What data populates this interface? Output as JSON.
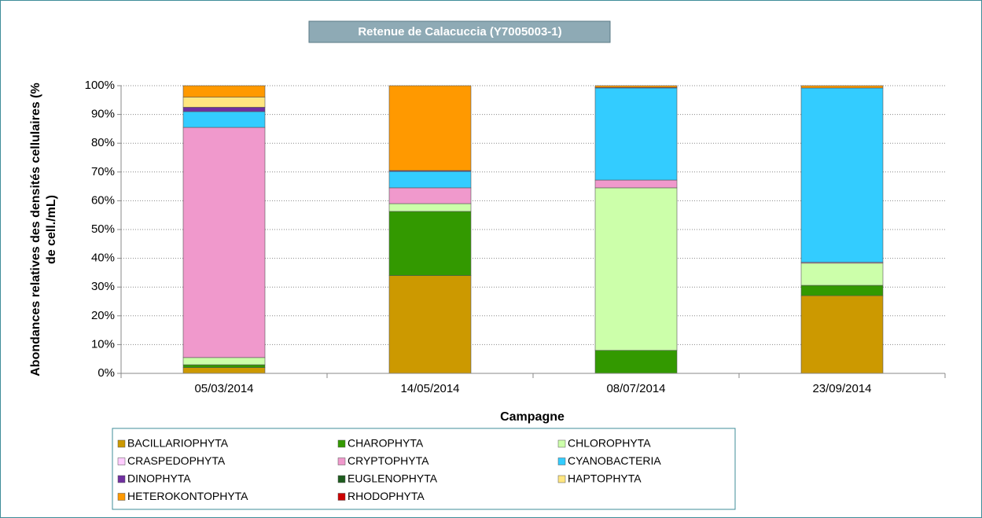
{
  "chart_data": {
    "type": "stacked_bar",
    "title": "Retenue de Calacuccia (Y7005003-1)",
    "xlabel": "Campagne",
    "ylabel": [
      "Abondances relatives des densités cellulaires (%",
      "de cell./mL)"
    ],
    "categories": [
      "05/03/2014",
      "14/05/2014",
      "08/07/2014",
      "23/09/2014"
    ],
    "ylim": [
      0,
      100
    ],
    "yticks": [
      {
        "value": 0,
        "label": "0%"
      },
      {
        "value": 10,
        "label": "10%"
      },
      {
        "value": 20,
        "label": "20%"
      },
      {
        "value": 30,
        "label": "30%"
      },
      {
        "value": 40,
        "label": "40%"
      },
      {
        "value": 50,
        "label": "50%"
      },
      {
        "value": 60,
        "label": "60%"
      },
      {
        "value": 70,
        "label": "70%"
      },
      {
        "value": 80,
        "label": "80%"
      },
      {
        "value": 90,
        "label": "90%"
      },
      {
        "value": 100,
        "label": "100%"
      }
    ],
    "grid": true,
    "series": [
      {
        "name": "BACILLARIOPHYTA",
        "color": "#cc9900",
        "values": [
          2,
          34,
          0,
          27
        ]
      },
      {
        "name": "CHAROPHYTA",
        "color": "#339900",
        "values": [
          1,
          22.3,
          8,
          3.6
        ]
      },
      {
        "name": "CHLOROPHYTA",
        "color": "#ccffaa",
        "values": [
          2.5,
          2.7,
          56.5,
          7.7
        ]
      },
      {
        "name": "CRASPEDOPHYTA",
        "color": "#ffccff",
        "values": [
          0,
          0,
          0,
          0
        ]
      },
      {
        "name": "CRYPTOPHYTA",
        "color": "#f099cc",
        "values": [
          80,
          5.5,
          2.7,
          0.3
        ]
      },
      {
        "name": "CYANOBACTERIA",
        "color": "#33ccff",
        "values": [
          5.5,
          5.7,
          32,
          60.6
        ]
      },
      {
        "name": "DINOPHYTA",
        "color": "#7030a0",
        "values": [
          1.5,
          0.3,
          0.2,
          0
        ]
      },
      {
        "name": "EUGLENOPHYTA",
        "color": "#1e5c1e",
        "values": [
          0,
          0,
          0,
          0
        ]
      },
      {
        "name": "HAPTOPHYTA",
        "color": "#ffe680",
        "values": [
          3.5,
          0,
          0,
          0
        ]
      },
      {
        "name": "HETEROKONTOPHYTA",
        "color": "#ff9900",
        "values": [
          4,
          29.5,
          0.6,
          0.8
        ]
      },
      {
        "name": "RHODOPHYTA",
        "color": "#cc0000",
        "values": [
          0,
          0,
          0,
          0
        ]
      }
    ]
  }
}
